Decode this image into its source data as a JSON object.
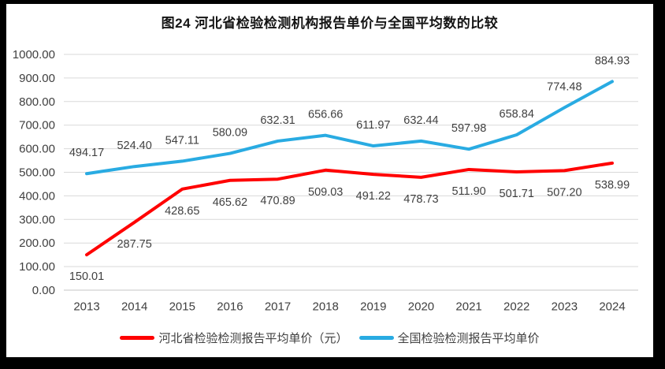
{
  "chart_data": {
    "type": "line",
    "title": "图24 河北省检验检测机构报告单价与全国平均数的比较",
    "categories": [
      "2013",
      "2014",
      "2015",
      "2016",
      "2017",
      "2018",
      "2019",
      "2020",
      "2021",
      "2022",
      "2023",
      "2024"
    ],
    "series": [
      {
        "name": "河北省检验检测报告平均单价（元）",
        "color": "#FF0000",
        "label_position": "below",
        "values": [
          150.01,
          287.75,
          428.65,
          465.62,
          470.89,
          509.03,
          491.22,
          478.73,
          511.9,
          501.71,
          507.2,
          538.99
        ]
      },
      {
        "name": "全国检验检测报告平均单价",
        "color": "#29ABE2",
        "label_position": "above",
        "values": [
          494.17,
          524.4,
          547.11,
          580.09,
          632.31,
          656.66,
          611.97,
          632.44,
          597.98,
          658.84,
          774.48,
          884.93
        ]
      }
    ],
    "ylim": [
      0,
      1000
    ],
    "ytick_step": 100,
    "value_decimals": 2,
    "grid": true,
    "legend_position": "bottom",
    "colors": {
      "gridline": "#D9D9D9",
      "axis_line": "#C6C6C6",
      "tick_label": "#404040",
      "data_label": "#404040",
      "frame": "#000000",
      "panel_background": "#FFFFFF"
    }
  }
}
